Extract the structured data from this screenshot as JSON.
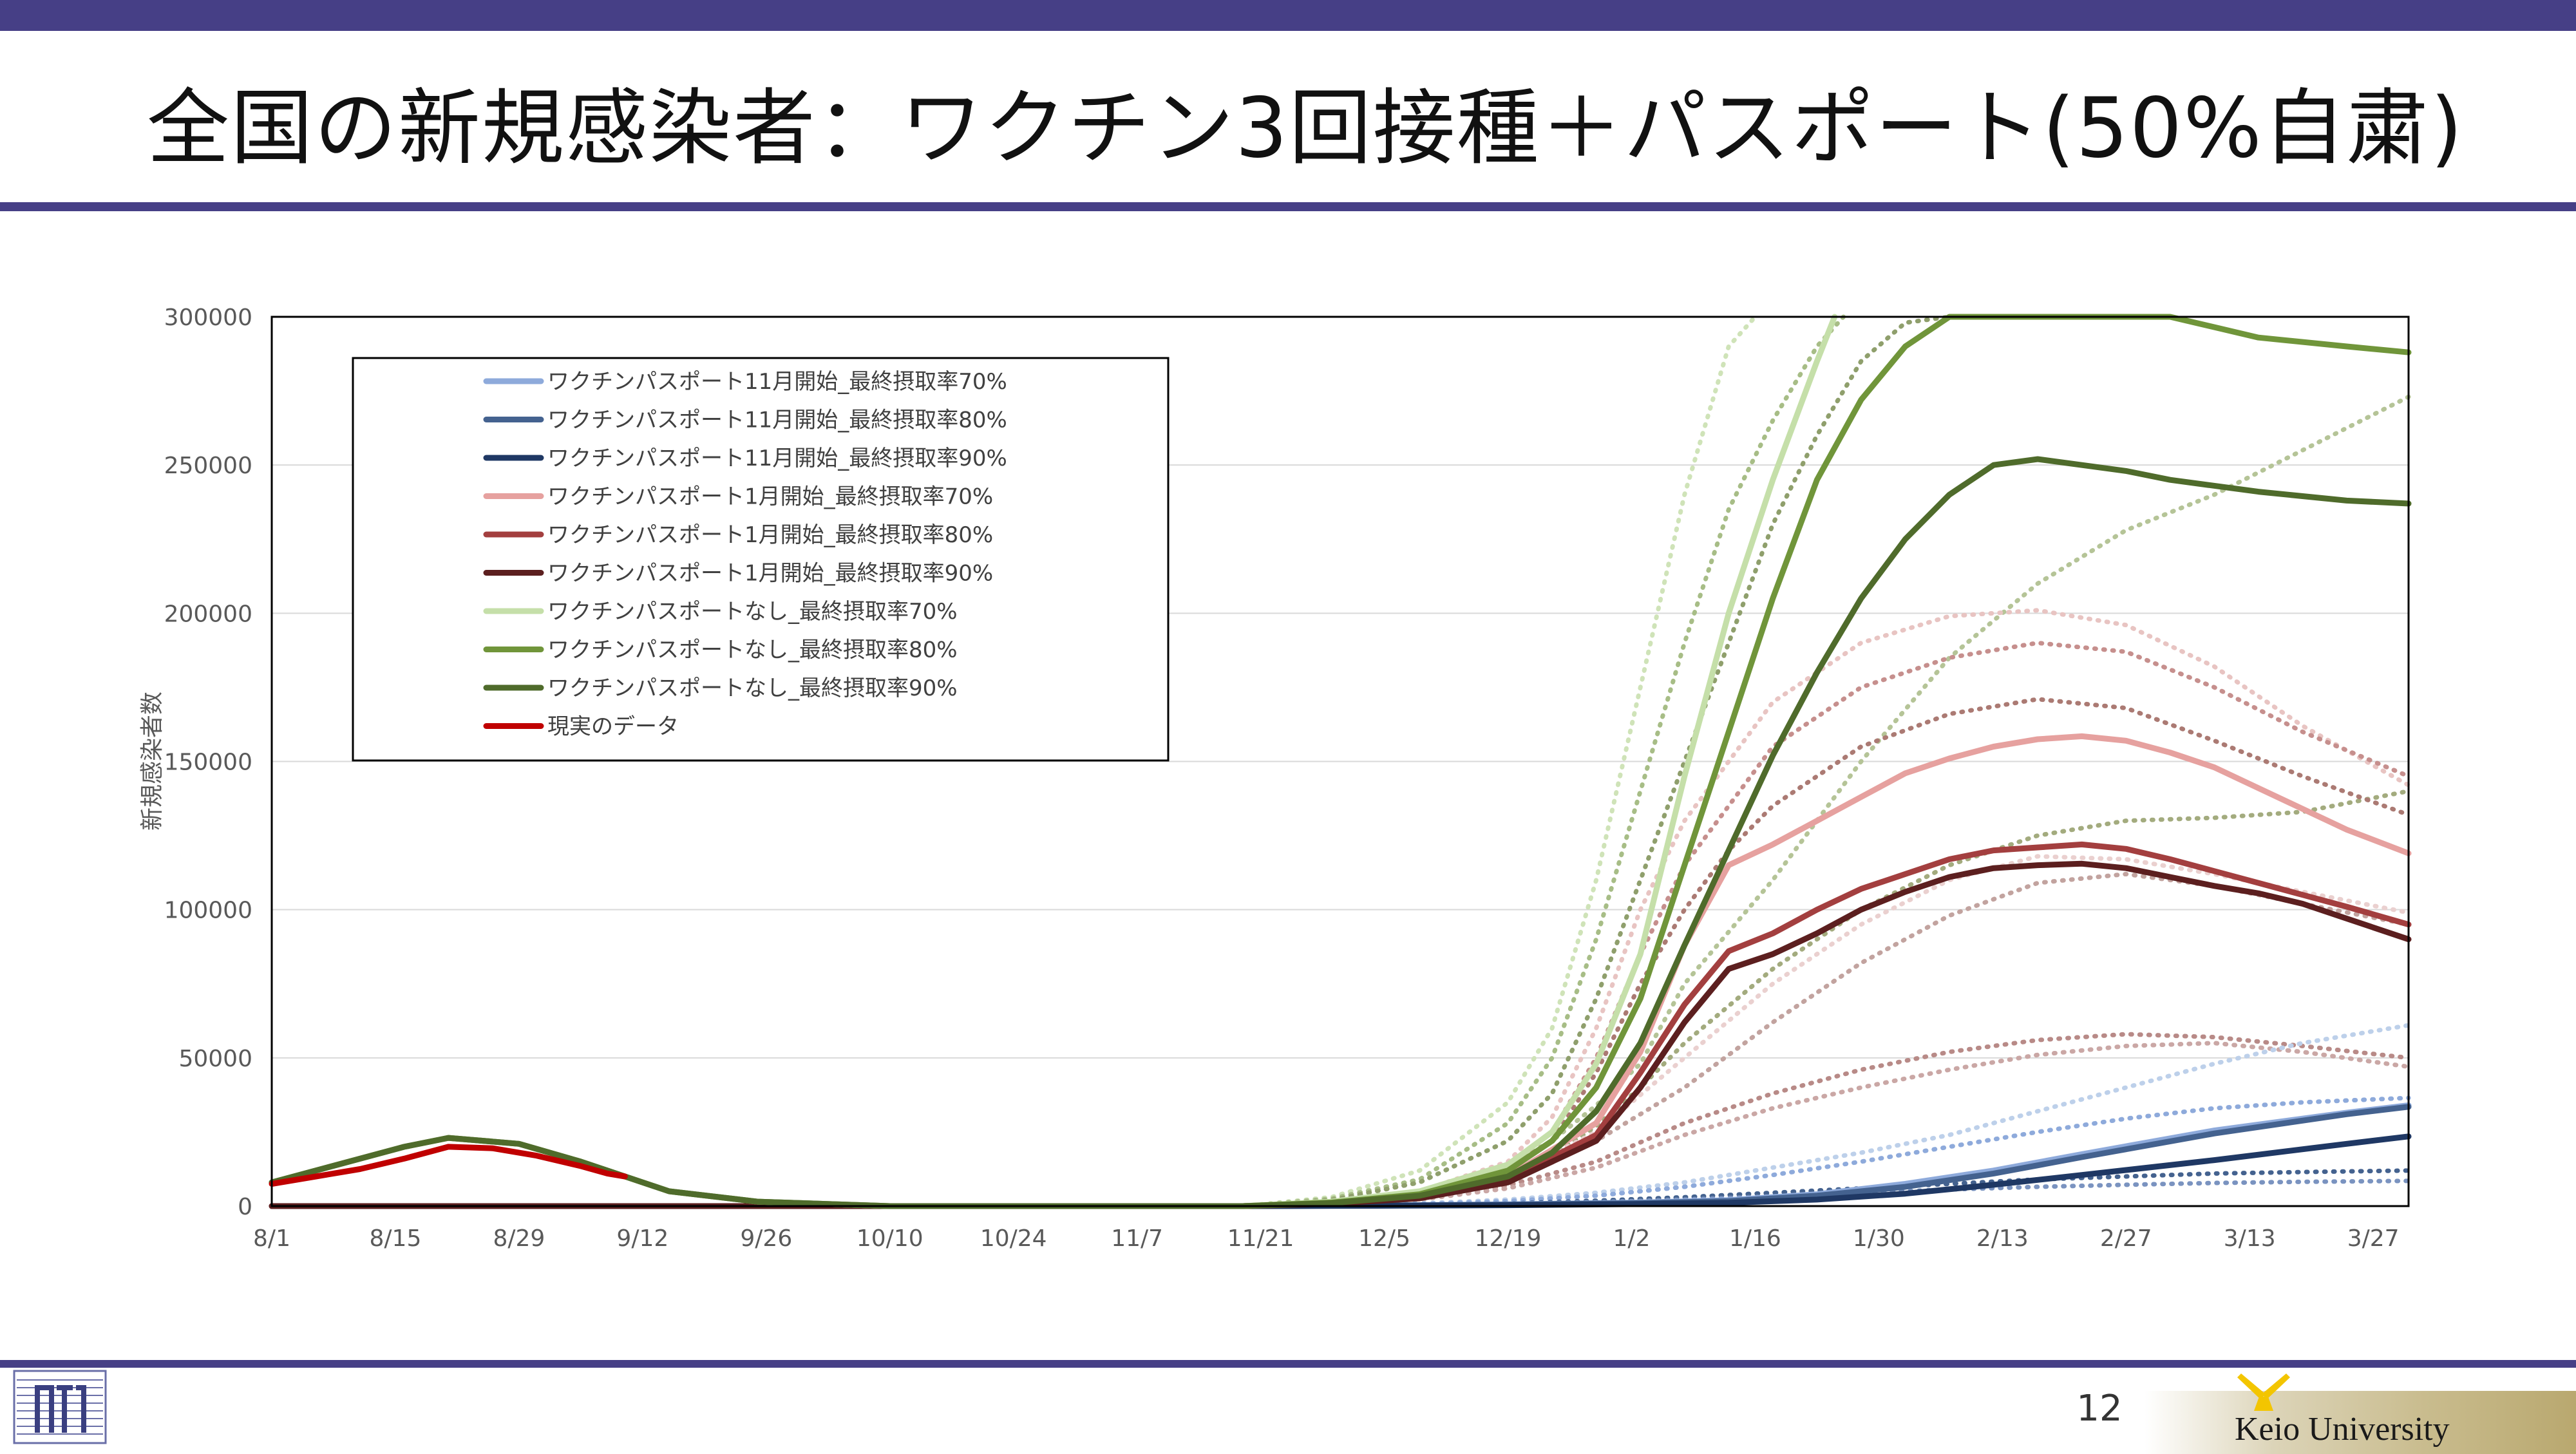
{
  "slide": {
    "title": "全国の新規感染者：ワクチン3回接種＋パスポート(50%自粛)",
    "page_number": "12",
    "university": "Keio University"
  },
  "colors": {
    "brand_band": "#463f86",
    "grid": "#d9d9d9"
  },
  "chart_data": {
    "type": "line",
    "ylabel": "新規感染者数",
    "xlabel": "",
    "ylim": [
      0,
      300000
    ],
    "yticks": [
      0,
      50000,
      100000,
      150000,
      200000,
      250000,
      300000
    ],
    "x_tick_labels": [
      "8/1",
      "8/15",
      "8/29",
      "9/12",
      "9/26",
      "10/10",
      "10/24",
      "11/7",
      "11/21",
      "12/5",
      "12/19",
      "1/2",
      "1/16",
      "1/30",
      "2/13",
      "2/27",
      "3/13",
      "3/27"
    ],
    "x_days_range": [
      0,
      242
    ],
    "legend_placement": "top-left",
    "grid": true,
    "series": [
      {
        "name": "ワクチンパスポート11月開始_最終摂取率70%",
        "color": "#8eaadb",
        "style": "solid",
        "x": [
          0,
          60,
          90,
          110,
          125,
          140,
          155,
          165,
          175,
          185,
          195,
          205,
          220,
          235,
          242
        ],
        "y": [
          0,
          0,
          0,
          0,
          200,
          600,
          1200,
          2000,
          4000,
          7500,
          12000,
          17500,
          25500,
          31500,
          34000
        ]
      },
      {
        "name": "ワクチンパスポート11月開始_最終摂取率80%",
        "color": "#44628f",
        "style": "solid",
        "x": [
          0,
          60,
          90,
          110,
          125,
          140,
          155,
          165,
          175,
          185,
          195,
          205,
          220,
          235,
          242
        ],
        "y": [
          0,
          0,
          0,
          0,
          150,
          500,
          1000,
          1700,
          3500,
          6500,
          11000,
          16500,
          24500,
          31000,
          33500
        ]
      },
      {
        "name": "ワクチンパスポート11月開始_最終摂取率90%",
        "color": "#1f3864",
        "style": "solid",
        "x": [
          0,
          60,
          90,
          110,
          125,
          140,
          155,
          165,
          175,
          185,
          195,
          205,
          220,
          235,
          242
        ],
        "y": [
          0,
          0,
          0,
          0,
          100,
          300,
          700,
          1100,
          2200,
          4200,
          7200,
          10500,
          15500,
          21000,
          23500
        ]
      },
      {
        "name": "ワクチンパスポート1月開始_最終摂取率70%",
        "color": "#e6a19f",
        "style": "solid",
        "x": [
          0,
          60,
          90,
          110,
          120,
          130,
          140,
          150,
          155,
          160,
          165,
          170,
          175,
          180,
          185,
          190,
          195,
          200,
          205,
          210,
          215,
          220,
          225,
          230,
          235,
          242
        ],
        "y": [
          0,
          0,
          0,
          0,
          1000,
          3500,
          10000,
          28000,
          52000,
          88000,
          115000,
          122000,
          130000,
          138000,
          146000,
          151000,
          155000,
          157500,
          158500,
          157000,
          153000,
          148000,
          141000,
          134000,
          127000,
          119000
        ]
      },
      {
        "name": "ワクチンパスポート1月開始_最終摂取率80%",
        "color": "#a33f3f",
        "style": "solid",
        "x": [
          0,
          60,
          90,
          110,
          120,
          130,
          140,
          150,
          155,
          160,
          165,
          170,
          175,
          180,
          185,
          190,
          195,
          200,
          205,
          210,
          215,
          220,
          225,
          230,
          235,
          242
        ],
        "y": [
          0,
          0,
          0,
          0,
          900,
          3000,
          9000,
          24000,
          45000,
          68000,
          86000,
          92000,
          100000,
          107000,
          112000,
          117000,
          120000,
          121000,
          122000,
          120500,
          117000,
          113000,
          109000,
          105000,
          101000,
          95000
        ]
      },
      {
        "name": "ワクチンパスポート1月開始_最終摂取率90%",
        "color": "#5c1f1f",
        "style": "solid",
        "x": [
          0,
          60,
          90,
          110,
          120,
          130,
          140,
          150,
          155,
          160,
          165,
          170,
          175,
          180,
          185,
          190,
          195,
          200,
          205,
          210,
          215,
          220,
          225,
          230,
          235,
          242
        ],
        "y": [
          0,
          0,
          0,
          0,
          800,
          2600,
          8000,
          22000,
          40000,
          62000,
          80000,
          85000,
          92000,
          100000,
          106000,
          111000,
          114000,
          115000,
          115500,
          114000,
          111000,
          108000,
          105500,
          102000,
          97000,
          90000
        ]
      },
      {
        "name": "ワクチンパスポートなし_最終摂取率70%",
        "color": "#c5dfa9",
        "style": "solid",
        "x": [
          0,
          15,
          20,
          28,
          35,
          45,
          55,
          70,
          90,
          110,
          120,
          130,
          140,
          145,
          150,
          155,
          160,
          165,
          170,
          175,
          177
        ],
        "y": [
          8000,
          20000,
          23000,
          21000,
          15000,
          5000,
          1500,
          0,
          0,
          0,
          1500,
          5000,
          14000,
          25000,
          48000,
          85000,
          145000,
          200000,
          245000,
          285000,
          300000
        ]
      },
      {
        "name": "ワクチンパスポートなし_最終摂取率80%",
        "color": "#70953a",
        "style": "solid",
        "x": [
          0,
          15,
          20,
          28,
          35,
          45,
          55,
          70,
          90,
          110,
          120,
          130,
          140,
          145,
          150,
          155,
          160,
          165,
          170,
          175,
          180,
          185,
          190,
          195,
          205,
          215,
          225,
          235,
          242
        ],
        "y": [
          8000,
          20000,
          23000,
          21000,
          15000,
          5000,
          1500,
          0,
          0,
          0,
          1200,
          4000,
          12000,
          22000,
          40000,
          70000,
          115000,
          160000,
          205000,
          245000,
          272000,
          290000,
          300000,
          305000,
          305000,
          300000,
          293000,
          290000,
          288000
        ]
      },
      {
        "name": "ワクチンパスポートなし_最終摂取率90%",
        "color": "#4f6b2b",
        "style": "solid",
        "x": [
          0,
          15,
          20,
          28,
          35,
          45,
          55,
          70,
          90,
          110,
          120,
          130,
          140,
          145,
          150,
          155,
          160,
          165,
          170,
          175,
          180,
          185,
          190,
          195,
          200,
          205,
          210,
          215,
          225,
          235,
          242
        ],
        "y": [
          8000,
          20000,
          23000,
          21000,
          15000,
          5000,
          1500,
          0,
          0,
          0,
          1000,
          3500,
          10000,
          18000,
          32000,
          55000,
          88000,
          120000,
          152000,
          180000,
          205000,
          225000,
          240000,
          250000,
          252000,
          250000,
          248000,
          245000,
          241000,
          238000,
          237000
        ]
      },
      {
        "name": "現実のデータ",
        "color": "#c00000",
        "style": "solid",
        "x": [
          0,
          5,
          10,
          15,
          20,
          25,
          30,
          35,
          38,
          40
        ],
        "y": [
          7500,
          10000,
          12500,
          16000,
          20000,
          19500,
          17000,
          13500,
          11000,
          10000
        ]
      },
      {
        "name": "",
        "color": "#cfe3b8",
        "style": "dotted",
        "x": [
          110,
          120,
          130,
          140,
          145,
          150,
          155,
          160,
          165,
          168
        ],
        "y": [
          0,
          3000,
          12000,
          35000,
          60000,
          110000,
          175000,
          240000,
          290000,
          300000
        ]
      },
      {
        "name": "",
        "color": "#a7bd86",
        "style": "dotted",
        "x": [
          110,
          120,
          130,
          140,
          145,
          150,
          155,
          160,
          165,
          170,
          175,
          178
        ],
        "y": [
          0,
          2500,
          9000,
          28000,
          50000,
          90000,
          140000,
          190000,
          235000,
          265000,
          290000,
          300000
        ]
      },
      {
        "name": "",
        "color": "#8f9f6c",
        "style": "dotted",
        "x": [
          110,
          120,
          130,
          140,
          145,
          150,
          155,
          160,
          165,
          170,
          175,
          180,
          185,
          190
        ],
        "y": [
          0,
          2000,
          8000,
          22000,
          38000,
          70000,
          110000,
          150000,
          190000,
          230000,
          260000,
          285000,
          298000,
          300000
        ]
      },
      {
        "name": "",
        "color": "#b5c497",
        "style": "dotted",
        "x": [
          110,
          120,
          130,
          140,
          145,
          150,
          155,
          160,
          170,
          180,
          190,
          200,
          210,
          220,
          230,
          242
        ],
        "y": [
          0,
          1500,
          5000,
          14000,
          22000,
          34000,
          48000,
          75000,
          110000,
          150000,
          185000,
          210000,
          228000,
          240000,
          255000,
          273000
        ]
      },
      {
        "name": "",
        "color": "#a3ab7e",
        "style": "dotted",
        "x": [
          110,
          120,
          130,
          140,
          145,
          150,
          155,
          160,
          170,
          180,
          190,
          200,
          210,
          220,
          230,
          242
        ],
        "y": [
          0,
          1200,
          4000,
          11000,
          17000,
          27000,
          40000,
          55000,
          80000,
          100000,
          115000,
          125000,
          130000,
          131000,
          133000,
          140000
        ]
      },
      {
        "name": "",
        "color": "#e8c4c2",
        "style": "dotted",
        "x": [
          110,
          120,
          130,
          140,
          145,
          150,
          155,
          160,
          165,
          170,
          180,
          190,
          200,
          210,
          220,
          230,
          242
        ],
        "y": [
          0,
          1500,
          5000,
          15000,
          30000,
          60000,
          100000,
          130000,
          150000,
          170000,
          190000,
          199000,
          201000,
          196000,
          182000,
          162000,
          142000
        ]
      },
      {
        "name": "",
        "color": "#c68f8d",
        "style": "dotted",
        "x": [
          110,
          120,
          130,
          140,
          145,
          150,
          155,
          160,
          165,
          170,
          180,
          190,
          200,
          210,
          220,
          230,
          242
        ],
        "y": [
          0,
          1400,
          4500,
          13000,
          25000,
          50000,
          85000,
          115000,
          135000,
          155000,
          175000,
          185000,
          190000,
          187000,
          175000,
          160000,
          145000
        ]
      },
      {
        "name": "",
        "color": "#ab7a73",
        "style": "dotted",
        "x": [
          110,
          120,
          130,
          140,
          145,
          150,
          155,
          160,
          165,
          170,
          180,
          190,
          200,
          210,
          220,
          230,
          242
        ],
        "y": [
          0,
          1300,
          4200,
          12000,
          22000,
          45000,
          75000,
          100000,
          120000,
          135000,
          155000,
          166000,
          171000,
          168000,
          157000,
          145000,
          132000
        ]
      },
      {
        "name": "",
        "color": "#ead0cf",
        "style": "dotted",
        "x": [
          110,
          120,
          130,
          140,
          150,
          160,
          170,
          180,
          190,
          200,
          210,
          220,
          230,
          242
        ],
        "y": [
          0,
          1000,
          3500,
          10000,
          25000,
          50000,
          75000,
          95000,
          110000,
          118000,
          117000,
          112000,
          106000,
          99000
        ]
      },
      {
        "name": "",
        "color": "#c2a39f",
        "style": "dotted",
        "x": [
          110,
          120,
          130,
          140,
          150,
          160,
          170,
          180,
          190,
          200,
          210,
          220,
          230,
          242
        ],
        "y": [
          0,
          900,
          3000,
          9000,
          22000,
          40000,
          62000,
          82000,
          98000,
          109000,
          112000,
          108000,
          102000,
          95000
        ]
      },
      {
        "name": "",
        "color": "#b88a87",
        "style": "dotted",
        "x": [
          110,
          120,
          130,
          140,
          150,
          160,
          170,
          180,
          190,
          200,
          210,
          220,
          230,
          242
        ],
        "y": [
          0,
          800,
          2500,
          7000,
          15000,
          28000,
          38000,
          46000,
          52000,
          56000,
          58000,
          57000,
          54000,
          50000
        ]
      },
      {
        "name": "",
        "color": "#caa7a5",
        "style": "dotted",
        "x": [
          110,
          120,
          130,
          140,
          150,
          160,
          170,
          180,
          190,
          200,
          210,
          220,
          230,
          242
        ],
        "y": [
          0,
          700,
          2200,
          6000,
          13000,
          24000,
          33000,
          40000,
          46000,
          51000,
          54000,
          55000,
          52000,
          47000
        ]
      },
      {
        "name": "",
        "color": "#bdd0ea",
        "style": "dotted",
        "x": [
          110,
          120,
          130,
          140,
          150,
          160,
          170,
          180,
          190,
          200,
          210,
          220,
          230,
          242
        ],
        "y": [
          0,
          300,
          900,
          2200,
          4500,
          8000,
          13000,
          18000,
          24000,
          32000,
          40000,
          48000,
          55000,
          61000
        ]
      },
      {
        "name": "",
        "color": "#8eaadb",
        "style": "dotted",
        "x": [
          110,
          120,
          130,
          140,
          150,
          160,
          170,
          180,
          190,
          200,
          210,
          220,
          230,
          242
        ],
        "y": [
          0,
          250,
          700,
          1700,
          3500,
          6500,
          10500,
          15000,
          20000,
          25000,
          29500,
          33000,
          35000,
          36500
        ]
      },
      {
        "name": "",
        "color": "#44628f",
        "style": "dotted",
        "x": [
          110,
          120,
          130,
          140,
          150,
          160,
          170,
          180,
          190,
          200,
          210,
          220,
          230,
          242
        ],
        "y": [
          0,
          150,
          400,
          900,
          1800,
          3000,
          4500,
          6000,
          7500,
          9000,
          10000,
          11000,
          11500,
          12000
        ]
      },
      {
        "name": "",
        "color": "#7a93c0",
        "style": "dotted",
        "x": [
          110,
          120,
          130,
          140,
          150,
          160,
          170,
          180,
          190,
          200,
          210,
          220,
          230,
          242
        ],
        "y": [
          0,
          100,
          300,
          700,
          1300,
          2200,
          3300,
          4500,
          5600,
          6500,
          7200,
          7800,
          8200,
          8500
        ]
      }
    ]
  }
}
